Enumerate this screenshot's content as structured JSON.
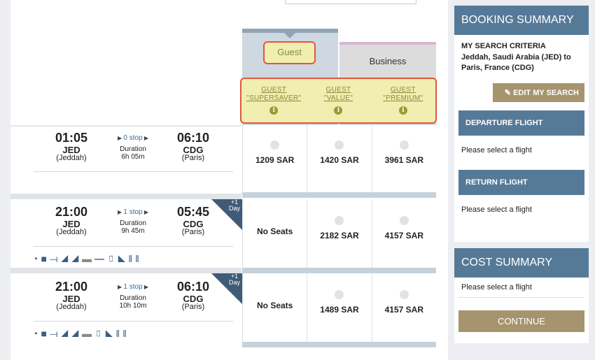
{
  "tabs": {
    "guest": "Guest",
    "business": "Business"
  },
  "fares": [
    {
      "l1": "GUEST",
      "l2": "\"SUPERSAVER\""
    },
    {
      "l1": "GUEST",
      "l2": "\"VALUE\""
    },
    {
      "l1": "GUEST",
      "l2": "\"PREMIUM\""
    }
  ],
  "flights": [
    {
      "dep": "01:05",
      "dep_code": "JED",
      "dep_city": "(Jeddah)",
      "stops": "0 stop",
      "dur_label": "Duration",
      "dur": "6h 05m",
      "arr": "06:10",
      "arr_code": "CDG",
      "arr_city": "(Paris)",
      "day": "",
      "prices": [
        "1209 SAR",
        "1420 SAR",
        "3961 SAR"
      ]
    },
    {
      "dep": "21:00",
      "dep_code": "JED",
      "dep_city": "(Jeddah)",
      "stops": "1 stop",
      "dur_label": "Duration",
      "dur": "9h 45m",
      "arr": "05:45",
      "arr_code": "CDG",
      "arr_city": "(Paris)",
      "day": "+1 Day",
      "prices": [
        "No Seats",
        "2182 SAR",
        "4157 SAR"
      ]
    },
    {
      "dep": "21:00",
      "dep_code": "JED",
      "dep_city": "(Jeddah)",
      "stops": "1 stop",
      "dur_label": "Duration",
      "dur": "10h 10m",
      "arr": "06:10",
      "arr_code": "CDG",
      "arr_city": "(Paris)",
      "day": "+1 Day",
      "prices": [
        "No Seats",
        "1489 SAR",
        "4157 SAR"
      ]
    }
  ],
  "amenities": [
    "wifi-icon",
    "screen-icon",
    "usb-icon",
    "power-seat-icon",
    "seat-icon",
    "seat-recline-icon",
    "flatbed-icon",
    "phone-icon",
    "lounge-icon",
    "dining-icon"
  ],
  "sidebar": {
    "title": "BOOKING SUMMARY",
    "criteria_heading": "MY SEARCH CRITERIA",
    "criteria_text": "Jeddah, Saudi Arabia (JED) to Paris, France (CDG)",
    "edit": "EDIT MY SEARCH",
    "departure": "DEPARTURE FLIGHT",
    "departure_msg": "Please select a flight",
    "return": "RETURN FLIGHT",
    "return_msg": "Please select a flight",
    "cost_title": "COST SUMMARY",
    "cost_msg": "Please select a flight",
    "continue": "CONTINUE"
  },
  "colors": {
    "accent": "#557a98",
    "gold": "#a6946e",
    "highlight": "#f0eeb0",
    "outline": "#e2563f"
  }
}
